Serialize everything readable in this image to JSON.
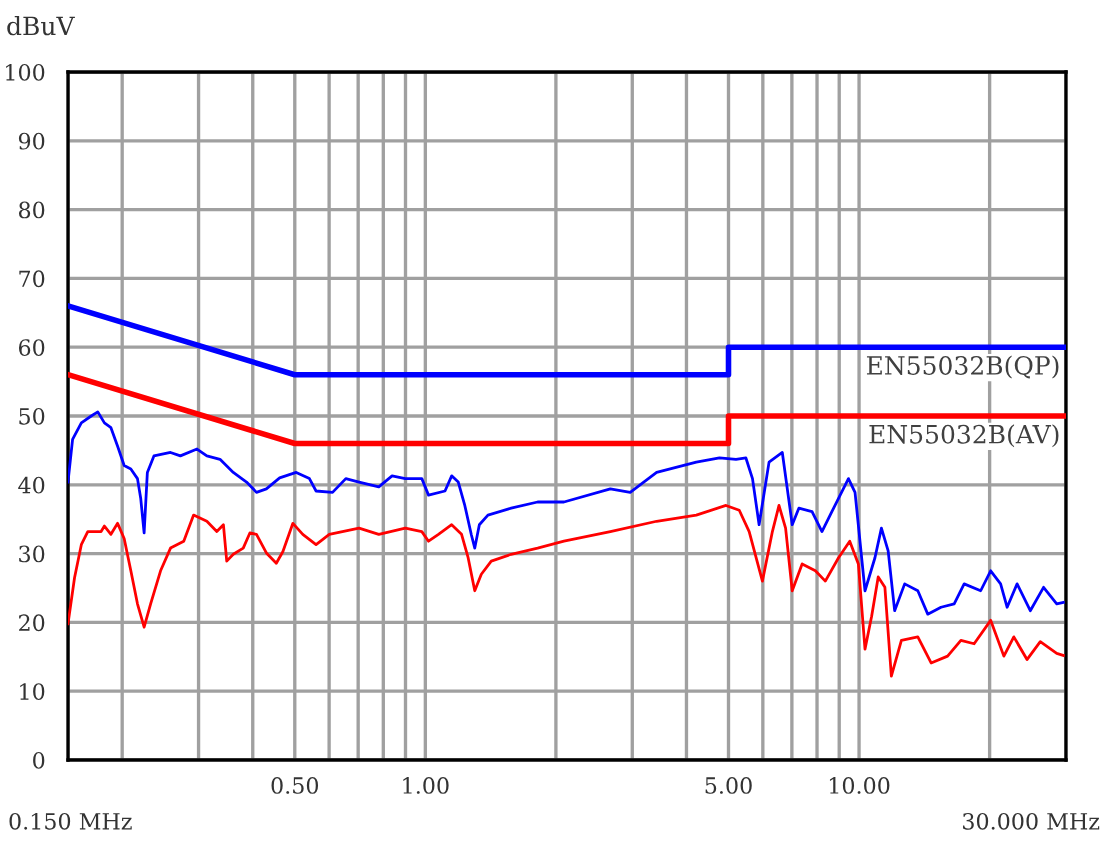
{
  "chart_data": {
    "type": "line",
    "ylabel": "dBuV",
    "log": "x",
    "grid": true,
    "legend": false,
    "line_style": "solid",
    "marker": "none",
    "xlim": [
      0.15,
      30
    ],
    "ylim": [
      0,
      100
    ],
    "xticks": [
      {
        "value": 0.15,
        "label": null
      },
      {
        "value": 0.2,
        "label": null
      },
      {
        "value": 0.3,
        "label": null
      },
      {
        "value": 0.4,
        "label": null
      },
      {
        "value": 0.5,
        "label": "0.50"
      },
      {
        "value": 0.6,
        "label": null
      },
      {
        "value": 0.7,
        "label": null
      },
      {
        "value": 0.8,
        "label": null
      },
      {
        "value": 0.9,
        "label": null
      },
      {
        "value": 1,
        "label": "1.00"
      },
      {
        "value": 2,
        "label": null
      },
      {
        "value": 3,
        "label": null
      },
      {
        "value": 4,
        "label": null
      },
      {
        "value": 5,
        "label": "5.00"
      },
      {
        "value": 6,
        "label": null
      },
      {
        "value": 7,
        "label": null
      },
      {
        "value": 8,
        "label": null
      },
      {
        "value": 9,
        "label": null
      },
      {
        "value": 10,
        "label": "10.00"
      },
      {
        "value": 20,
        "label": null
      },
      {
        "value": 30,
        "label": null
      }
    ],
    "annotations": [
      "0.150 MHz",
      "30.000 MHz"
    ],
    "yticks": [
      0,
      10,
      20,
      30,
      40,
      50,
      60,
      70,
      80,
      90,
      100
    ],
    "series": [
      {
        "name": "EN55032B(QP)",
        "color": "#0000ff",
        "x": [
          0.15,
          0.5,
          5,
          5,
          30
        ],
        "values": [
          66,
          56,
          56,
          60,
          60
        ]
      },
      {
        "name": "EN55032B(AV)",
        "color": "#ff0000",
        "x": [
          0.15,
          0.5,
          5,
          5,
          30
        ],
        "values": [
          56,
          46,
          46,
          50,
          50
        ]
      },
      {
        "color": "#0000ff",
        "x": [
          0.15,
          0.1537,
          0.161,
          0.1697,
          0.1757,
          0.182,
          0.1884,
          0.1952,
          0.2021,
          0.2094,
          0.2169,
          0.2207,
          0.2247,
          0.2286,
          0.2367,
          0.2585,
          0.2724,
          0.2975,
          0.3135,
          0.3362,
          0.3607,
          0.387,
          0.408,
          0.43,
          0.4614,
          0.5038,
          0.5404,
          0.5598,
          0.611,
          0.6556,
          0.7033,
          0.7811,
          0.8381,
          0.899,
          0.9815,
          1.017,
          1.11,
          1.15,
          1.191,
          1.233,
          1.277,
          1.3,
          1.332,
          1.394,
          1.577,
          1.815,
          2.087,
          2.67,
          2.967,
          3.414,
          4.214,
          4.766,
          5.203,
          5.484,
          5.679,
          5.882,
          6.201,
          6.653,
          7.013,
          7.264,
          7.791,
          8.212,
          8.656,
          9.452,
          9.788,
          10.32,
          10.88,
          11.26,
          11.67,
          12.08,
          12.74,
          13.66,
          14.4,
          15.45,
          16.57,
          17.47,
          19.07,
          20.11,
          21.2,
          21.95,
          23.14,
          24.82,
          26.63,
          28.56,
          29.58
        ],
        "values": [
          40.4,
          46.6,
          49,
          50,
          50.6,
          49,
          48.3,
          45.6,
          42.8,
          42.3,
          40.9,
          38,
          33,
          41.8,
          44.2,
          44.7,
          44.2,
          45.2,
          44.2,
          43.7,
          41.8,
          40.4,
          38.9,
          39.4,
          41,
          41.8,
          40.9,
          39.1,
          38.9,
          40.9,
          40.4,
          39.7,
          41.3,
          40.9,
          40.9,
          38.5,
          39.1,
          41.3,
          40.4,
          37,
          32.7,
          30.8,
          34.2,
          35.6,
          36.6,
          37.5,
          37.5,
          39.4,
          38.9,
          41.8,
          43.3,
          43.9,
          43.7,
          43.9,
          40.9,
          34.2,
          43.3,
          44.7,
          34.2,
          36.6,
          36.1,
          33.2,
          36.1,
          40.9,
          38.9,
          24.6,
          29.4,
          33.7,
          30.4,
          21.7,
          25.6,
          24.6,
          21.2,
          22.2,
          22.7,
          25.6,
          24.6,
          27.5,
          25.6,
          22.2,
          25.6,
          21.7,
          25.1,
          22.7,
          22.9
        ]
      },
      {
        "color": "#ff0000",
        "x": [
          0.15,
          0.1553,
          0.161,
          0.1666,
          0.1788,
          0.182,
          0.1884,
          0.1952,
          0.2021,
          0.2094,
          0.2169,
          0.2247,
          0.2326,
          0.2452,
          0.2585,
          0.2773,
          0.2922,
          0.3135,
          0.3305,
          0.3423,
          0.3484,
          0.3607,
          0.3803,
          0.3939,
          0.408,
          0.43,
          0.4533,
          0.4695,
          0.495,
          0.5217,
          0.5598,
          0.6005,
          0.7033,
          0.7811,
          0.899,
          0.9815,
          1.017,
          1.072,
          1.15,
          1.212,
          1.255,
          1.3,
          1.346,
          1.419,
          1.577,
          1.815,
          2.087,
          2.67,
          3.414,
          4.214,
          4.934,
          5.294,
          5.58,
          5.986,
          6.312,
          6.537,
          6.77,
          7.013,
          7.391,
          7.93,
          8.36,
          8.968,
          9.517,
          9.963,
          10.32,
          10.69,
          11.07,
          11.47,
          11.87,
          12.52,
          13.66,
          14.66,
          16.0,
          17.17,
          18.42,
          20.11,
          21.57,
          22.74,
          24.39,
          26.17,
          28.56,
          29.58
        ],
        "values": [
          19.8,
          26.5,
          31.3,
          33.2,
          33.2,
          34,
          32.8,
          34.4,
          32.2,
          27.5,
          22.7,
          19.3,
          22.7,
          27.5,
          30.8,
          31.8,
          35.6,
          34.7,
          33.2,
          34.2,
          28.9,
          29.9,
          30.8,
          33,
          32.8,
          30.1,
          28.6,
          30.3,
          34.4,
          32.8,
          31.3,
          32.8,
          33.7,
          32.8,
          33.7,
          33.2,
          31.8,
          32.8,
          34.2,
          32.8,
          29.4,
          24.6,
          27,
          28.9,
          29.9,
          30.8,
          31.8,
          33.2,
          34.7,
          35.6,
          37,
          36.3,
          33.2,
          26,
          33.2,
          37,
          33.7,
          24.6,
          28.5,
          27.5,
          26,
          29.4,
          31.8,
          28.5,
          16.1,
          20.9,
          26.6,
          25.1,
          12.2,
          17.4,
          17.9,
          14.1,
          15.1,
          17.4,
          16.9,
          20.3,
          15.1,
          17.9,
          14.6,
          17.2,
          15.5,
          15.2
        ]
      }
    ]
  }
}
